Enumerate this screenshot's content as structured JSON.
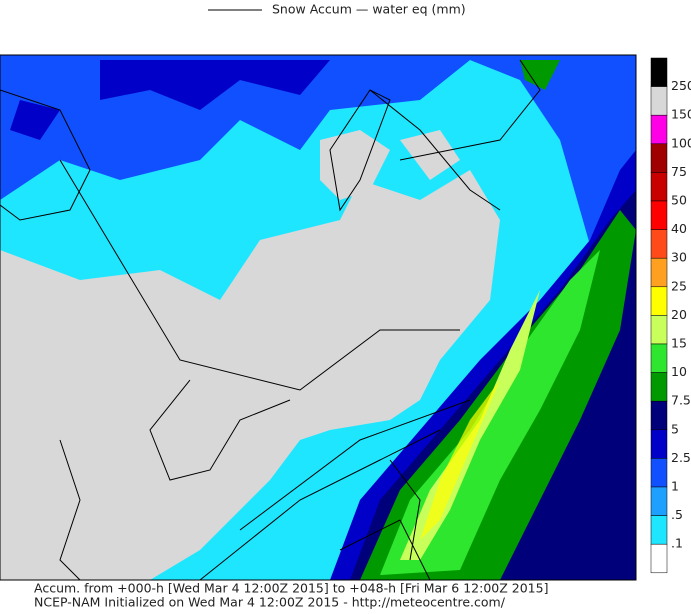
{
  "header": {
    "title": "Snow Accum — water eq (mm)"
  },
  "colorbar": {
    "labels": [
      "250",
      "150",
      "100",
      "75",
      "50",
      "40",
      "30",
      "25",
      "20",
      "15",
      "10",
      "7.5",
      "5",
      "2.5",
      "1",
      ".5",
      ".1"
    ],
    "colors": [
      "#000000",
      "#d8d8d8",
      "#ff00e6",
      "#a00000",
      "#c80000",
      "#ff0000",
      "#ff4a1a",
      "#ffa020",
      "#ffff00",
      "#c8ff5a",
      "#2ee62e",
      "#009a00",
      "#00007a",
      "#0000c8",
      "#1050ff",
      "#1ea0ff",
      "#1ee6ff",
      "#ffffff"
    ]
  },
  "footer": {
    "line1": "Accum. from +000-h [Wed Mar 4 12:00Z 2015] to +048-h [Fri Mar 6 12:00Z 2015]",
    "line2": "NCEP-NAM Initialized on Wed Mar 4 12:00Z 2015 - http://meteocentre.com/"
  }
}
